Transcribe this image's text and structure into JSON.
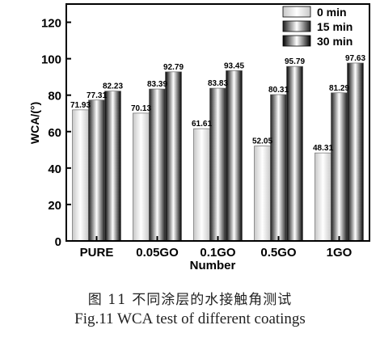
{
  "chart_data": {
    "type": "bar",
    "ylabel": "WCA/(°)",
    "xlabel": "Number",
    "ylim": [
      0,
      130
    ],
    "yticks": [
      0,
      20,
      40,
      60,
      80,
      100,
      120
    ],
    "categories": [
      "PURE",
      "0.05GO",
      "0.1GO",
      "0.5GO",
      "1GO"
    ],
    "series": [
      {
        "name": "0 min",
        "values": [
          71.93,
          70.13,
          61.61,
          52.05,
          48.31
        ],
        "labels": [
          "71.93",
          "70.13",
          "61.61",
          "52.05",
          "48.31"
        ],
        "tone": "#c8c8c8"
      },
      {
        "name": "15 min",
        "values": [
          77.31,
          83.39,
          83.83,
          80.31,
          81.29
        ],
        "labels": [
          "77.31",
          "83.39",
          "83.83",
          "80.31",
          "81.29"
        ],
        "tone": "#1e1e1e"
      },
      {
        "name": "30 min",
        "values": [
          82.23,
          92.79,
          93.45,
          95.79,
          97.63
        ],
        "labels": [
          "82.23",
          "92.79",
          "93.45",
          "95.79",
          "97.63"
        ],
        "tone": "#000000"
      }
    ],
    "legend_position": "top-right",
    "grid": false
  },
  "caption": {
    "chinese": "图 11   不同涂层的水接触角测试",
    "english": "Fig.11 WCA test of different coatings"
  }
}
